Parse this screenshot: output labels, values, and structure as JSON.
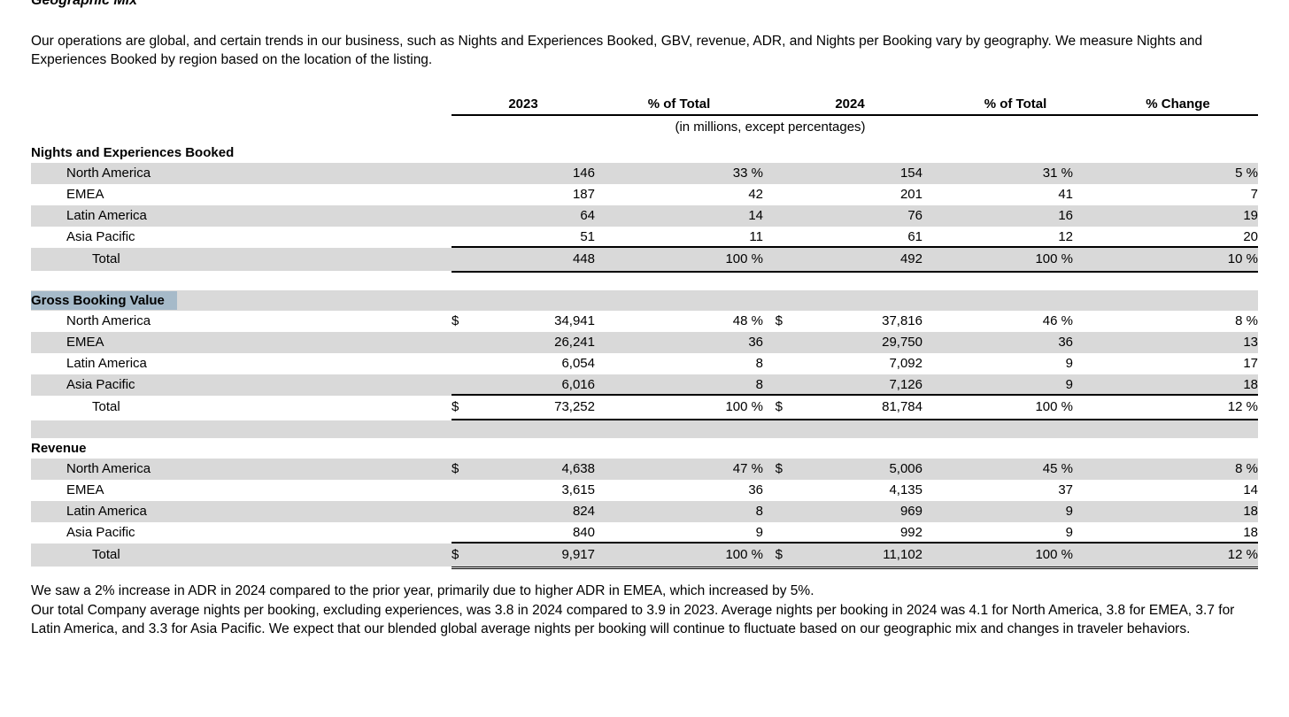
{
  "document": {
    "title": "Geographic Mix",
    "intro": "Our operations are global, and certain trends in our business, such as Nights and Experiences Booked, GBV, revenue, ADR, and Nights per Booking vary by geography. We measure Nights and Experiences Booked by region based on the location of the listing.",
    "footnotes": [
      "We saw a 2% increase in ADR in 2024 compared to the prior year, primarily due to higher ADR in EMEA, which increased by 5%.",
      "Our total Company average nights per booking, excluding experiences, was 3.8 in 2024 compared to 3.9 in 2023. Average nights per booking in 2024 was 4.1 for North America, 3.8 for EMEA, 3.7 for Latin America, and 3.3 for Asia Pacific. We expect that our blended global average nights per booking will continue to fluctuate based on our geographic mix and changes in traveler behaviors."
    ]
  },
  "table": {
    "column_headers": [
      "2023",
      "% of Total",
      "2024",
      "% of Total",
      "% Change"
    ],
    "units_note": "(in millions, except percentages)",
    "sections": [
      {
        "title": "Nights and Experiences Booked",
        "title_highlighted": false,
        "header_shaded": false,
        "spacer_after": "white",
        "rows": [
          {
            "label": "North America",
            "usd_2023": "",
            "val_2023": "146",
            "pct_2023": "33 %",
            "usd_2024": "",
            "val_2024": "154",
            "pct_2024": "31 %",
            "pct_change": "5 %"
          },
          {
            "label": "EMEA",
            "usd_2023": "",
            "val_2023": "187",
            "pct_2023": "42",
            "usd_2024": "",
            "val_2024": "201",
            "pct_2024": "41",
            "pct_change": "7"
          },
          {
            "label": "Latin America",
            "usd_2023": "",
            "val_2023": "64",
            "pct_2023": "14",
            "usd_2024": "",
            "val_2024": "76",
            "pct_2024": "16",
            "pct_change": "19"
          },
          {
            "label": "Asia Pacific",
            "usd_2023": "",
            "val_2023": "51",
            "pct_2023": "11",
            "usd_2024": "",
            "val_2024": "61",
            "pct_2024": "12",
            "pct_change": "20"
          }
        ],
        "total": {
          "label": "Total",
          "usd_2023": "",
          "val_2023": "448",
          "pct_2023": "100 %",
          "usd_2024": "",
          "val_2024": "492",
          "pct_2024": "100 %",
          "pct_change": "10 %"
        }
      },
      {
        "title": "Gross Booking Value",
        "title_highlighted": true,
        "header_shaded": true,
        "spacer_after": "gray",
        "rows": [
          {
            "label": "North America",
            "usd_2023": "$",
            "val_2023": "34,941",
            "pct_2023": "48 %",
            "usd_2024": "$",
            "val_2024": "37,816",
            "pct_2024": "46 %",
            "pct_change": "8 %"
          },
          {
            "label": "EMEA",
            "usd_2023": "",
            "val_2023": "26,241",
            "pct_2023": "36",
            "usd_2024": "",
            "val_2024": "29,750",
            "pct_2024": "36",
            "pct_change": "13"
          },
          {
            "label": "Latin America",
            "usd_2023": "",
            "val_2023": "6,054",
            "pct_2023": "8",
            "usd_2024": "",
            "val_2024": "7,092",
            "pct_2024": "9",
            "pct_change": "17"
          },
          {
            "label": "Asia Pacific",
            "usd_2023": "",
            "val_2023": "6,016",
            "pct_2023": "8",
            "usd_2024": "",
            "val_2024": "7,126",
            "pct_2024": "9",
            "pct_change": "18"
          }
        ],
        "total": {
          "label": "Total",
          "usd_2023": "$",
          "val_2023": "73,252",
          "pct_2023": "100 %",
          "usd_2024": "$",
          "val_2024": "81,784",
          "pct_2024": "100 %",
          "pct_change": "12 %"
        }
      },
      {
        "title": "Revenue",
        "title_highlighted": false,
        "header_shaded": false,
        "spacer_after": null,
        "rows": [
          {
            "label": "North America",
            "usd_2023": "$",
            "val_2023": "4,638",
            "pct_2023": "47 %",
            "usd_2024": "$",
            "val_2024": "5,006",
            "pct_2024": "45 %",
            "pct_change": "8 %"
          },
          {
            "label": "EMEA",
            "usd_2023": "",
            "val_2023": "3,615",
            "pct_2023": "36",
            "usd_2024": "",
            "val_2024": "4,135",
            "pct_2024": "37",
            "pct_change": "14"
          },
          {
            "label": "Latin America",
            "usd_2023": "",
            "val_2023": "824",
            "pct_2023": "8",
            "usd_2024": "",
            "val_2024": "969",
            "pct_2024": "9",
            "pct_change": "18"
          },
          {
            "label": "Asia Pacific",
            "usd_2023": "",
            "val_2023": "840",
            "pct_2023": "9",
            "usd_2024": "",
            "val_2024": "992",
            "pct_2024": "9",
            "pct_change": "18"
          }
        ],
        "total": {
          "label": "Total",
          "usd_2023": "$",
          "val_2023": "9,917",
          "pct_2023": "100 %",
          "usd_2024": "$",
          "val_2024": "11,102",
          "pct_2024": "100 %",
          "pct_change": "12 %"
        }
      }
    ]
  },
  "colors": {
    "row_shade": "#d9d9d9",
    "selection_highlight": "#a6bac9",
    "rule": "#000000",
    "text": "#000000",
    "background": "#ffffff"
  }
}
